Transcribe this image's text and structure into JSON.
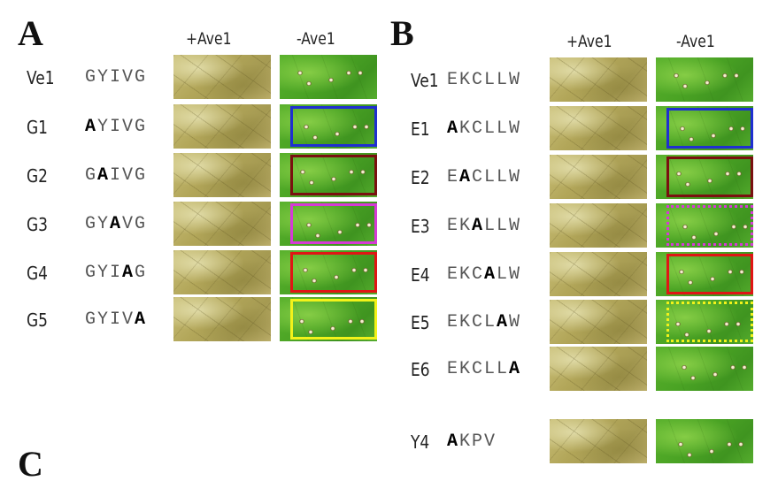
{
  "panels": {
    "a": {
      "letter": "A",
      "col_plus": "+Ave1",
      "col_minus": "-Ave1",
      "rows": [
        {
          "name": "Ve1",
          "seq_pre": "GYIVG",
          "seq_bold": "",
          "seq_post": "",
          "box": null
        },
        {
          "name": "G1",
          "seq_pre": "",
          "seq_bold": "A",
          "seq_post": "YIVG",
          "box": {
            "color": "#1f2fd1",
            "style": "solid"
          }
        },
        {
          "name": "G2",
          "seq_pre": "G",
          "seq_bold": "A",
          "seq_post": "IVG",
          "box": {
            "color": "#7a1010",
            "style": "solid"
          }
        },
        {
          "name": "G3",
          "seq_pre": "GY",
          "seq_bold": "A",
          "seq_post": "VG",
          "box": {
            "color": "#d63ad6",
            "style": "solid"
          }
        },
        {
          "name": "G4",
          "seq_pre": "GYI",
          "seq_bold": "A",
          "seq_post": "G",
          "box": {
            "color": "#e01515",
            "style": "solid"
          }
        },
        {
          "name": "G5",
          "seq_pre": "GYIV",
          "seq_bold": "A",
          "seq_post": "",
          "box": {
            "color": "#f2f21a",
            "style": "solid"
          }
        }
      ]
    },
    "b": {
      "letter": "B",
      "col_plus": "+Ave1",
      "col_minus": "-Ave1",
      "rows": [
        {
          "name": "Ve1",
          "seq_pre": "EKCLLW",
          "seq_bold": "",
          "seq_post": "",
          "box": null
        },
        {
          "name": "E1",
          "seq_pre": "",
          "seq_bold": "A",
          "seq_post": "KCLLW",
          "box": {
            "color": "#1f2fd1",
            "style": "solid"
          }
        },
        {
          "name": "E2",
          "seq_pre": "E",
          "seq_bold": "A",
          "seq_post": "CLLW",
          "box": {
            "color": "#7a1010",
            "style": "solid"
          }
        },
        {
          "name": "E3",
          "seq_pre": "EK",
          "seq_bold": "A",
          "seq_post": "LLW",
          "box": {
            "color": "#d63ad6",
            "style": "dotted"
          }
        },
        {
          "name": "E4",
          "seq_pre": "EKC",
          "seq_bold": "A",
          "seq_post": "LW",
          "box": {
            "color": "#e01515",
            "style": "solid"
          }
        },
        {
          "name": "E5",
          "seq_pre": "EKCL",
          "seq_bold": "A",
          "seq_post": "W",
          "box": {
            "color": "#f2f21a",
            "style": "dotted"
          }
        },
        {
          "name": "E6",
          "seq_pre": "EKCLL",
          "seq_bold": "A",
          "seq_post": "",
          "box": null
        },
        {
          "name": "Y4",
          "seq_pre": "",
          "seq_bold": "A",
          "seq_post": "KPV",
          "box": null
        }
      ]
    },
    "c": {
      "letter": "C"
    }
  }
}
